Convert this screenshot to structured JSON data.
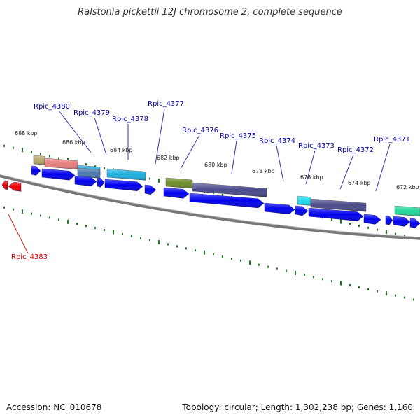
{
  "title": "Ralstonia pickettii 12J chromosome 2, complete sequence",
  "footer": {
    "accession": "Accession: NC_010678",
    "summary": "Topology: circular; Length: 1,302,238 bp; Genes: 1,160"
  },
  "colors": {
    "label_blue": "#0000aa",
    "label_red": "#cc0000",
    "leader_blue": "#3333aa",
    "leader_red": "#dd2222",
    "tick": "#1e7a1e",
    "backbone": "#777777",
    "cds_arrow": "#0000ee",
    "rev_arrow": "#ee0000"
  },
  "kbp_ticks": [
    "688 kbp",
    "686 kbp",
    "684 kbp",
    "682 kbp",
    "680 kbp",
    "678 kbp",
    "676 kbp",
    "674 kbp",
    "672 kbp"
  ],
  "gene_labels": [
    {
      "name": "Rpic_4380",
      "strand": "plus"
    },
    {
      "name": "Rpic_4379",
      "strand": "plus"
    },
    {
      "name": "Rpic_4378",
      "strand": "plus"
    },
    {
      "name": "Rpic_4377",
      "strand": "plus"
    },
    {
      "name": "Rpic_4376",
      "strand": "plus"
    },
    {
      "name": "Rpic_4375",
      "strand": "plus"
    },
    {
      "name": "Rpic_4374",
      "strand": "plus"
    },
    {
      "name": "Rpic_4373",
      "strand": "plus"
    },
    {
      "name": "Rpic_4372",
      "strand": "plus"
    },
    {
      "name": "Rpic_4371",
      "strand": "plus"
    },
    {
      "name": "Rpic_4383",
      "strand": "minus"
    }
  ],
  "feature_colors": [
    {
      "name": "tan",
      "color": "#b5a86a"
    },
    {
      "name": "salmon",
      "color": "#e88080"
    },
    {
      "name": "sky",
      "color": "#22aadd"
    },
    {
      "name": "steel",
      "color": "#4a7ab0"
    },
    {
      "name": "cyan",
      "color": "#1ab0e0"
    },
    {
      "name": "olive",
      "color": "#6e8c2a"
    },
    {
      "name": "slate",
      "color": "#4a4a8c"
    },
    {
      "name": "aqua",
      "color": "#22d8ee"
    },
    {
      "name": "slate2",
      "color": "#4a4a8c"
    },
    {
      "name": "mint",
      "color": "#22d898"
    }
  ]
}
